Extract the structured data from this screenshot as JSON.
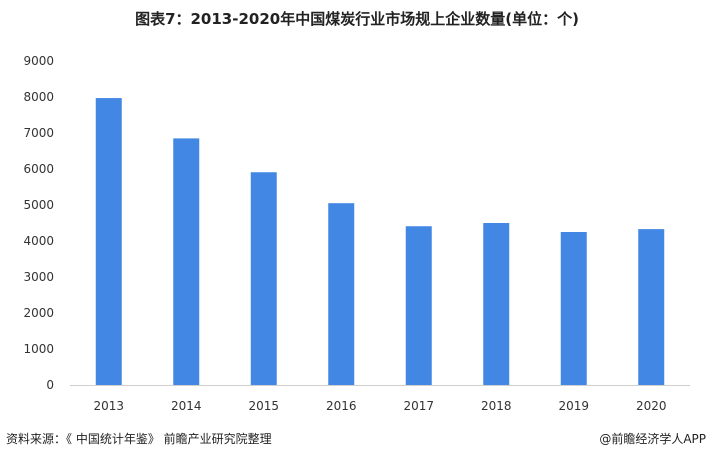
{
  "chart_data": {
    "type": "bar",
    "title": "图表7：2013-2020年中国煤炭行业市场规上企业数量(单位：个)",
    "categories": [
      "2013",
      "2014",
      "2015",
      "2016",
      "2017",
      "2018",
      "2019",
      "2020"
    ],
    "values": [
      7970,
      6850,
      5910,
      5050,
      4410,
      4500,
      4250,
      4330
    ],
    "ylim": [
      0,
      9000
    ],
    "yticks": [
      0,
      1000,
      2000,
      3000,
      4000,
      5000,
      6000,
      7000,
      8000,
      9000
    ],
    "xlabel": "",
    "ylabel": "",
    "grid": false,
    "bar_color": "#4287e3"
  },
  "footer": {
    "source": "资料来源：《 中国统计年鉴》 前瞻产业研究院整理",
    "brand": "@前瞻经济学人APP"
  }
}
